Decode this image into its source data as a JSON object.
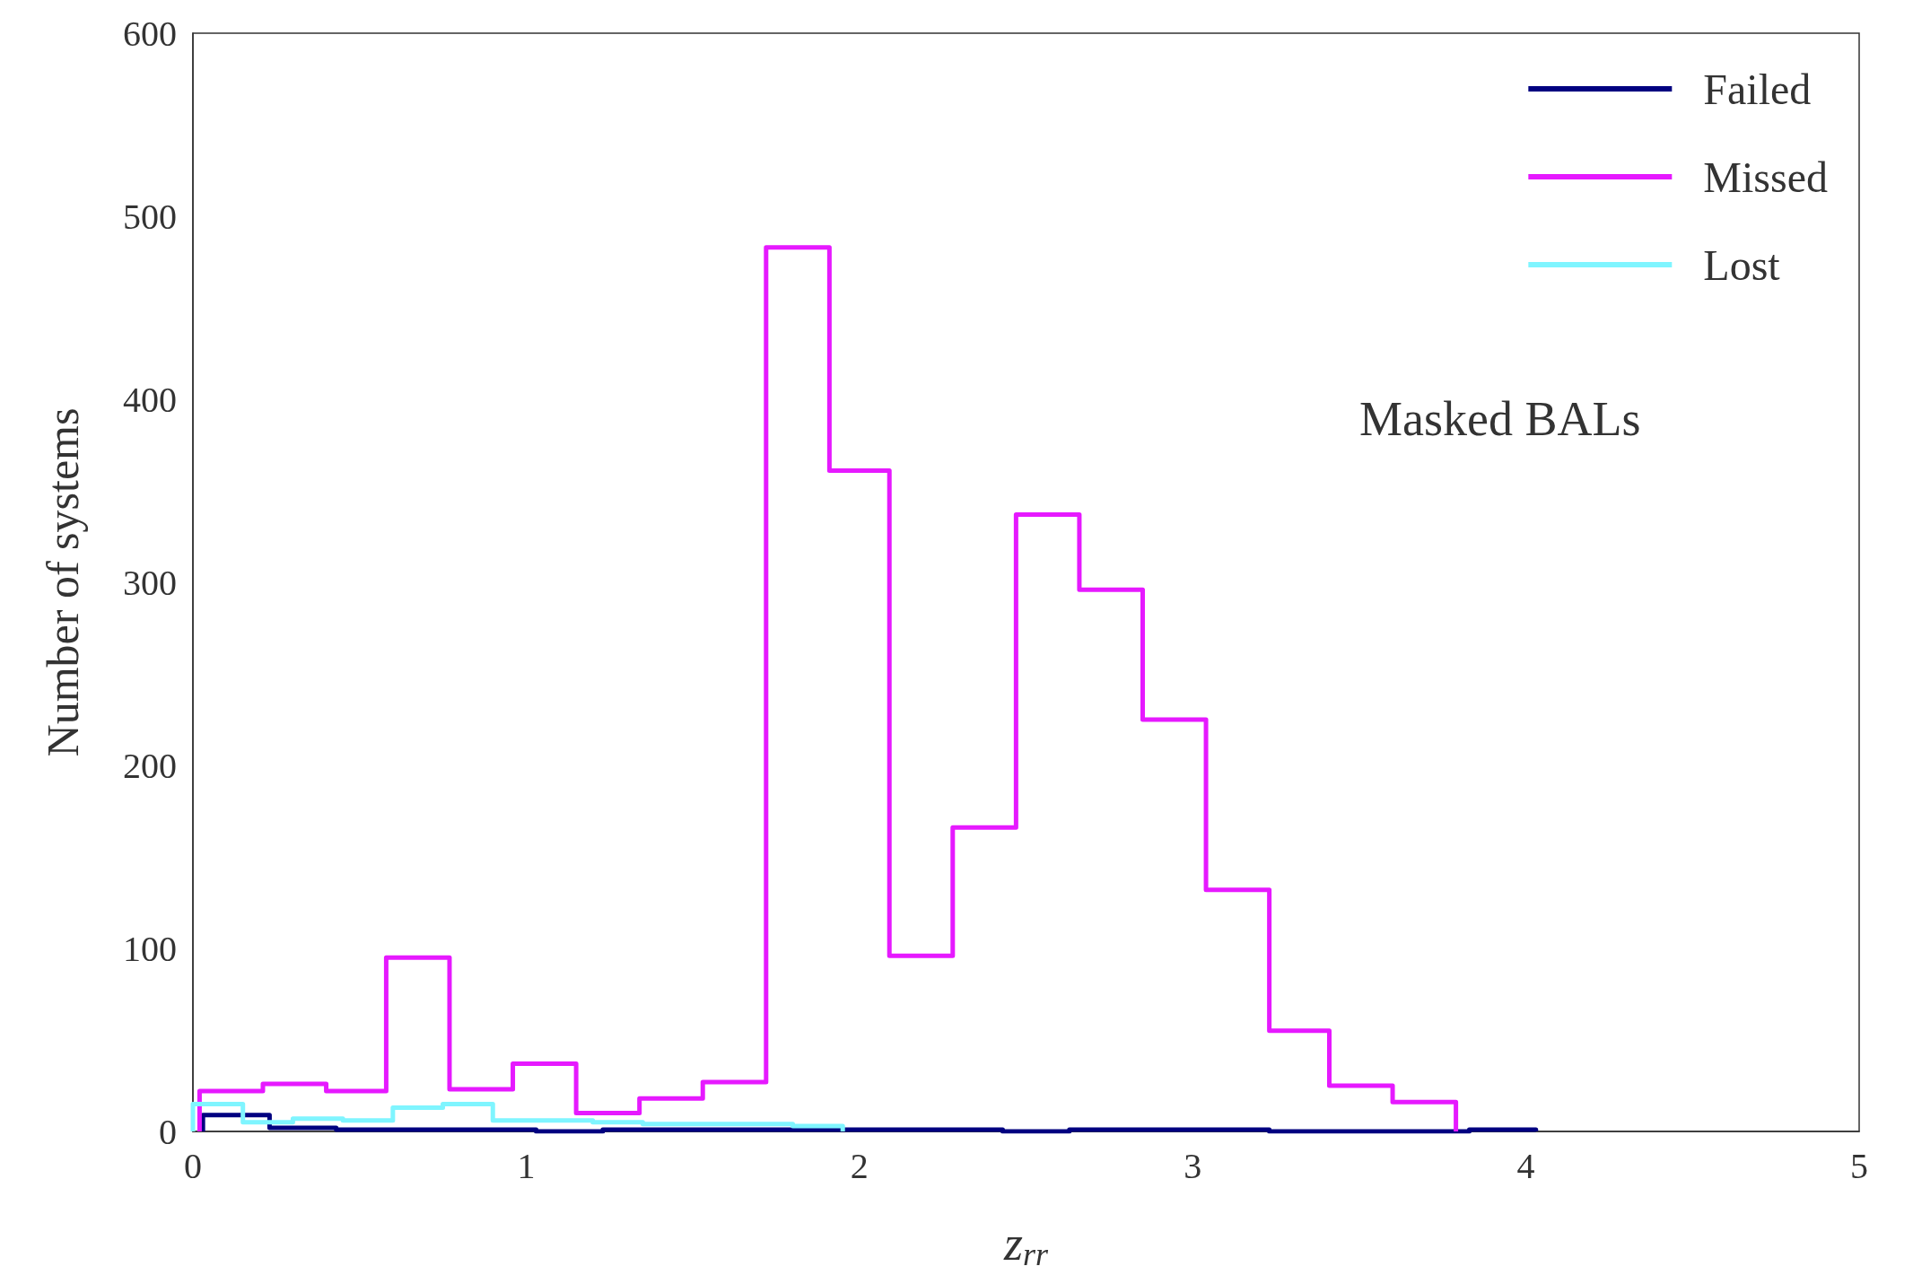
{
  "chart_data": {
    "type": "histogram",
    "xlabel": "z$_{rr}$",
    "ylabel": "Number of systems",
    "xlim": [
      0,
      5
    ],
    "xticks": [
      0,
      1,
      2,
      3,
      4,
      5
    ],
    "ylim": [
      0,
      600
    ],
    "yticks": [
      0,
      100,
      200,
      300,
      400,
      500,
      600
    ],
    "grid": false,
    "legend": "top right",
    "bins": [
      0.02,
      0.21,
      0.4,
      0.58,
      0.77,
      0.96,
      1.15,
      1.34,
      1.53,
      1.72,
      1.91,
      2.09,
      2.28,
      2.47,
      2.66,
      2.85,
      3.04,
      3.23,
      3.41,
      3.6,
      3.79
    ],
    "annotations": [
      "Masked BALs"
    ],
    "series": [
      {
        "name": "Failed",
        "color": "#000080",
        "bins": [
          0.03,
          0.23,
          0.43,
          0.63,
          0.83,
          1.03,
          1.23,
          1.43,
          1.63,
          1.83,
          2.03,
          2.23,
          2.43,
          2.63,
          2.83,
          3.03,
          3.23,
          3.43,
          3.63,
          3.83,
          4.03
        ],
        "values": [
          9,
          2,
          1,
          1,
          1,
          0,
          1,
          1,
          1,
          1,
          1,
          1,
          0,
          1,
          1,
          1,
          0,
          0,
          0,
          1
        ]
      },
      {
        "name": "Missed",
        "color": "#e619ff",
        "values": [
          22,
          26,
          22,
          95,
          23,
          37,
          10,
          18,
          27,
          483,
          361,
          96,
          166,
          337,
          296,
          225,
          132,
          55,
          25,
          16
        ]
      },
      {
        "name": "Lost",
        "color": "#7ff5ff",
        "bins": [
          0.0,
          0.15,
          0.3,
          0.45,
          0.6,
          0.75,
          0.9,
          1.05,
          1.2,
          1.35,
          1.5,
          1.65,
          1.8,
          1.95
        ],
        "values": [
          15,
          5,
          7,
          6,
          13,
          15,
          6,
          6,
          5,
          4,
          4,
          4,
          3
        ]
      }
    ]
  }
}
